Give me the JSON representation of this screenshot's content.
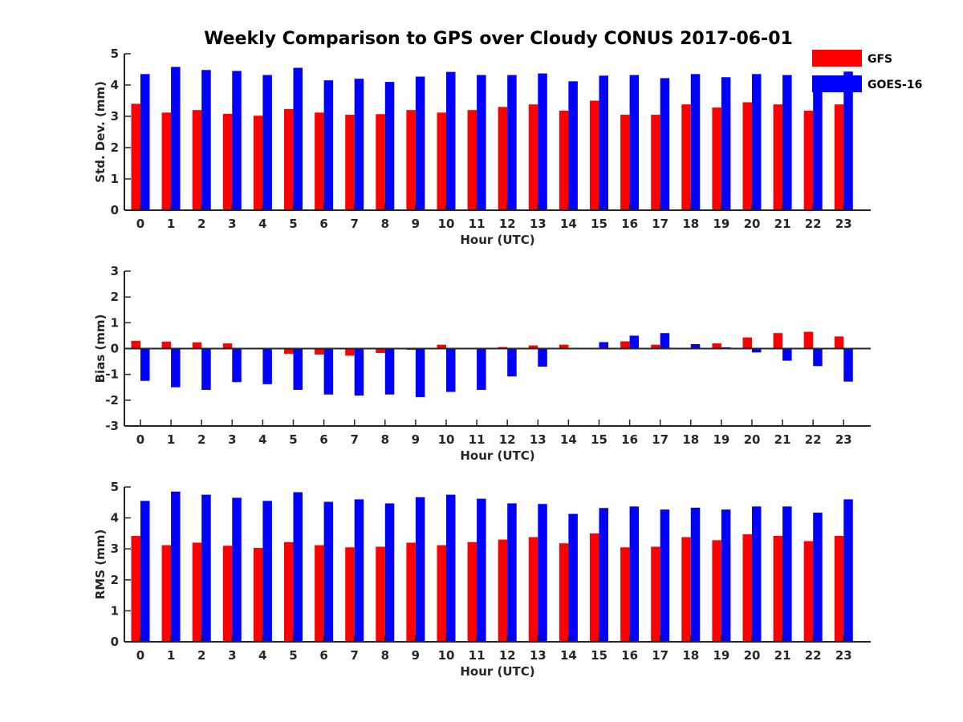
{
  "figure": {
    "title": "Weekly Comparison to GPS over Cloudy CONUS 2017-06-01",
    "legend": {
      "placement": "top-right",
      "entries": [
        {
          "name": "GFS",
          "color": "#ff0000"
        },
        {
          "name": "GOES-16",
          "color": "#0000ff"
        }
      ]
    }
  },
  "chart_data": [
    {
      "type": "bar",
      "ylabel": "Std. Dev. (mm)",
      "xlabel": "Hour (UTC)",
      "ylim": [
        0,
        5
      ],
      "yticks": [
        0,
        1,
        2,
        3,
        4,
        5
      ],
      "categories": [
        "0",
        "1",
        "2",
        "3",
        "4",
        "5",
        "6",
        "7",
        "8",
        "9",
        "10",
        "11",
        "12",
        "13",
        "14",
        "15",
        "16",
        "17",
        "18",
        "19",
        "20",
        "21",
        "22",
        "23"
      ],
      "series": [
        {
          "name": "GFS",
          "color": "#ff0000",
          "values": [
            3.4,
            3.12,
            3.2,
            3.08,
            3.02,
            3.23,
            3.12,
            3.05,
            3.07,
            3.2,
            3.12,
            3.2,
            3.3,
            3.38,
            3.18,
            3.5,
            3.05,
            3.05,
            3.38,
            3.28,
            3.45,
            3.38,
            3.18,
            3.38
          ]
        },
        {
          "name": "GOES-16",
          "color": "#0000ff",
          "values": [
            4.35,
            4.58,
            4.48,
            4.45,
            4.32,
            4.55,
            4.15,
            4.2,
            4.1,
            4.27,
            4.42,
            4.32,
            4.32,
            4.37,
            4.12,
            4.3,
            4.32,
            4.22,
            4.35,
            4.25,
            4.35,
            4.32,
            4.08,
            4.43
          ]
        }
      ]
    },
    {
      "type": "bar",
      "ylabel": "Bias (mm)",
      "xlabel": "Hour (UTC)",
      "ylim": [
        -3,
        3
      ],
      "yticks": [
        -3,
        -2,
        -1,
        0,
        1,
        2,
        3
      ],
      "categories": [
        "0",
        "1",
        "2",
        "3",
        "4",
        "5",
        "6",
        "7",
        "8",
        "9",
        "10",
        "11",
        "12",
        "13",
        "14",
        "15",
        "16",
        "17",
        "18",
        "19",
        "20",
        "21",
        "22",
        "23"
      ],
      "series": [
        {
          "name": "GFS",
          "color": "#ff0000",
          "values": [
            0.3,
            0.27,
            0.24,
            0.2,
            0.0,
            -0.2,
            -0.23,
            -0.27,
            -0.17,
            -0.05,
            0.15,
            0.03,
            0.06,
            0.12,
            0.15,
            0.0,
            0.28,
            0.15,
            -0.03,
            0.2,
            0.43,
            0.6,
            0.65,
            0.47
          ]
        },
        {
          "name": "GOES-16",
          "color": "#0000ff",
          "values": [
            -1.25,
            -1.5,
            -1.6,
            -1.3,
            -1.38,
            -1.6,
            -1.78,
            -1.82,
            -1.78,
            -1.88,
            -1.68,
            -1.6,
            -1.08,
            -0.7,
            0.0,
            0.25,
            0.5,
            0.6,
            0.17,
            0.05,
            -0.15,
            -0.47,
            -0.68,
            -1.28
          ]
        }
      ]
    },
    {
      "type": "bar",
      "ylabel": "RMS (mm)",
      "xlabel": "Hour (UTC)",
      "ylim": [
        0,
        5
      ],
      "yticks": [
        0,
        1,
        2,
        3,
        4,
        5
      ],
      "categories": [
        "0",
        "1",
        "2",
        "3",
        "4",
        "5",
        "6",
        "7",
        "8",
        "9",
        "10",
        "11",
        "12",
        "13",
        "14",
        "15",
        "16",
        "17",
        "18",
        "19",
        "20",
        "21",
        "22",
        "23"
      ],
      "series": [
        {
          "name": "GFS",
          "color": "#ff0000",
          "values": [
            3.42,
            3.12,
            3.2,
            3.1,
            3.03,
            3.22,
            3.12,
            3.05,
            3.07,
            3.2,
            3.12,
            3.22,
            3.3,
            3.38,
            3.18,
            3.5,
            3.05,
            3.07,
            3.38,
            3.28,
            3.47,
            3.42,
            3.25,
            3.42
          ]
        },
        {
          "name": "GOES-16",
          "color": "#0000ff",
          "values": [
            4.55,
            4.85,
            4.75,
            4.65,
            4.55,
            4.83,
            4.52,
            4.6,
            4.47,
            4.67,
            4.75,
            4.62,
            4.47,
            4.45,
            4.13,
            4.32,
            4.37,
            4.27,
            4.33,
            4.27,
            4.37,
            4.37,
            4.17,
            4.6
          ]
        }
      ]
    }
  ]
}
